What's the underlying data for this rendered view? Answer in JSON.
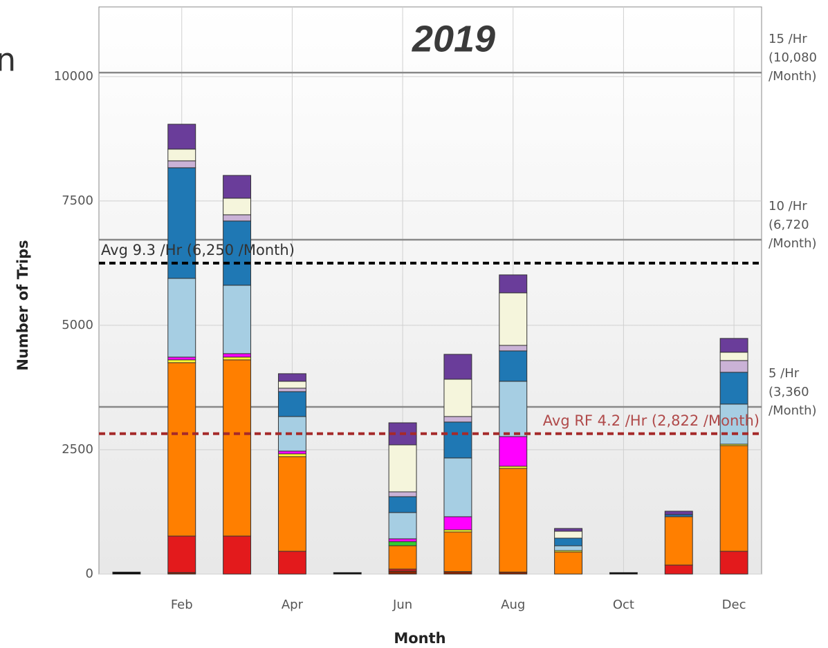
{
  "left_fragment": "n",
  "chart_data": {
    "type": "stacked_bar",
    "title": "2019",
    "x_label": "Month",
    "y_label": "Number of Trips",
    "categories": [
      null,
      "Feb",
      null,
      "Apr",
      null,
      "Jun",
      null,
      "Aug",
      null,
      "Oct",
      null,
      "Dec"
    ],
    "series": [
      {
        "color": "#8b2500",
        "values": [
          0,
          30,
          0,
          0,
          0,
          60,
          50,
          40,
          0,
          0,
          0,
          0
        ]
      },
      {
        "color": "#e31a1c",
        "values": [
          0,
          734,
          764,
          458,
          0,
          40,
          0,
          0,
          0,
          0,
          181,
          458
        ]
      },
      {
        "color": "#ff7f00",
        "values": [
          0,
          3486,
          3542,
          1903,
          0,
          470,
          797,
          2085,
          444,
          0,
          972,
          2125
        ]
      },
      {
        "color": "#ffff33",
        "values": [
          0,
          56,
          56,
          56,
          0,
          0,
          42,
          42,
          28,
          0,
          0,
          28
        ]
      },
      {
        "color": "#33cc33",
        "values": [
          0,
          0,
          0,
          0,
          0,
          83,
          0,
          0,
          0,
          0,
          0,
          0
        ]
      },
      {
        "color": "#ff00ff",
        "values": [
          0,
          55,
          69,
          55,
          0,
          56,
          264,
          597,
          0,
          0,
          0,
          0
        ]
      },
      {
        "color": "#a6cee3",
        "values": [
          0,
          1583,
          1375,
          695,
          0,
          528,
          1181,
          1111,
          97,
          0,
          0,
          806
        ]
      },
      {
        "color": "#1f78b4",
        "values": [
          0,
          2223,
          1291,
          500,
          0,
          319,
          722,
          611,
          153,
          0,
          42,
          639
        ]
      },
      {
        "color": "#cab2d6",
        "values": [
          0,
          139,
          125,
          69,
          0,
          97,
          111,
          111,
          0,
          0,
          0,
          236
        ]
      },
      {
        "color": "#f5f5dc",
        "values": [
          0,
          236,
          333,
          139,
          0,
          944,
          750,
          1056,
          139,
          0,
          0,
          167
        ]
      },
      {
        "color": "#6a3d9a",
        "values": [
          0,
          500,
          458,
          153,
          0,
          444,
          500,
          361,
          56,
          0,
          69,
          278
        ]
      },
      {
        "color": "#000000",
        "values": [
          40,
          0,
          0,
          0,
          30,
          0,
          0,
          0,
          0,
          30,
          0,
          0
        ]
      }
    ],
    "ylim": [
      0,
      11400
    ],
    "yticks": [
      0,
      2500,
      5000,
      7500,
      10000
    ],
    "grid": true,
    "reference_lines": [
      {
        "value": 10080,
        "color": "#888888",
        "label_lines": [
          "15 /Hr",
          "(10,080",
          "/Month)"
        ]
      },
      {
        "value": 6720,
        "color": "#888888",
        "label_lines": [
          "10 /Hr",
          "(6,720",
          "/Month)"
        ]
      },
      {
        "value": 3360,
        "color": "#888888",
        "label_lines": [
          "5 /Hr",
          "(3,360",
          "/Month)"
        ]
      }
    ],
    "average_lines": [
      {
        "value": 6250,
        "color": "#000000",
        "label": "Avg 9.3 /Hr (6,250 /Month)",
        "label_side": "left"
      },
      {
        "value": 2822,
        "color": "#a52a2a",
        "label": "Avg RF 4.2 /Hr (2,822 /Month)",
        "label_side": "right"
      }
    ]
  }
}
